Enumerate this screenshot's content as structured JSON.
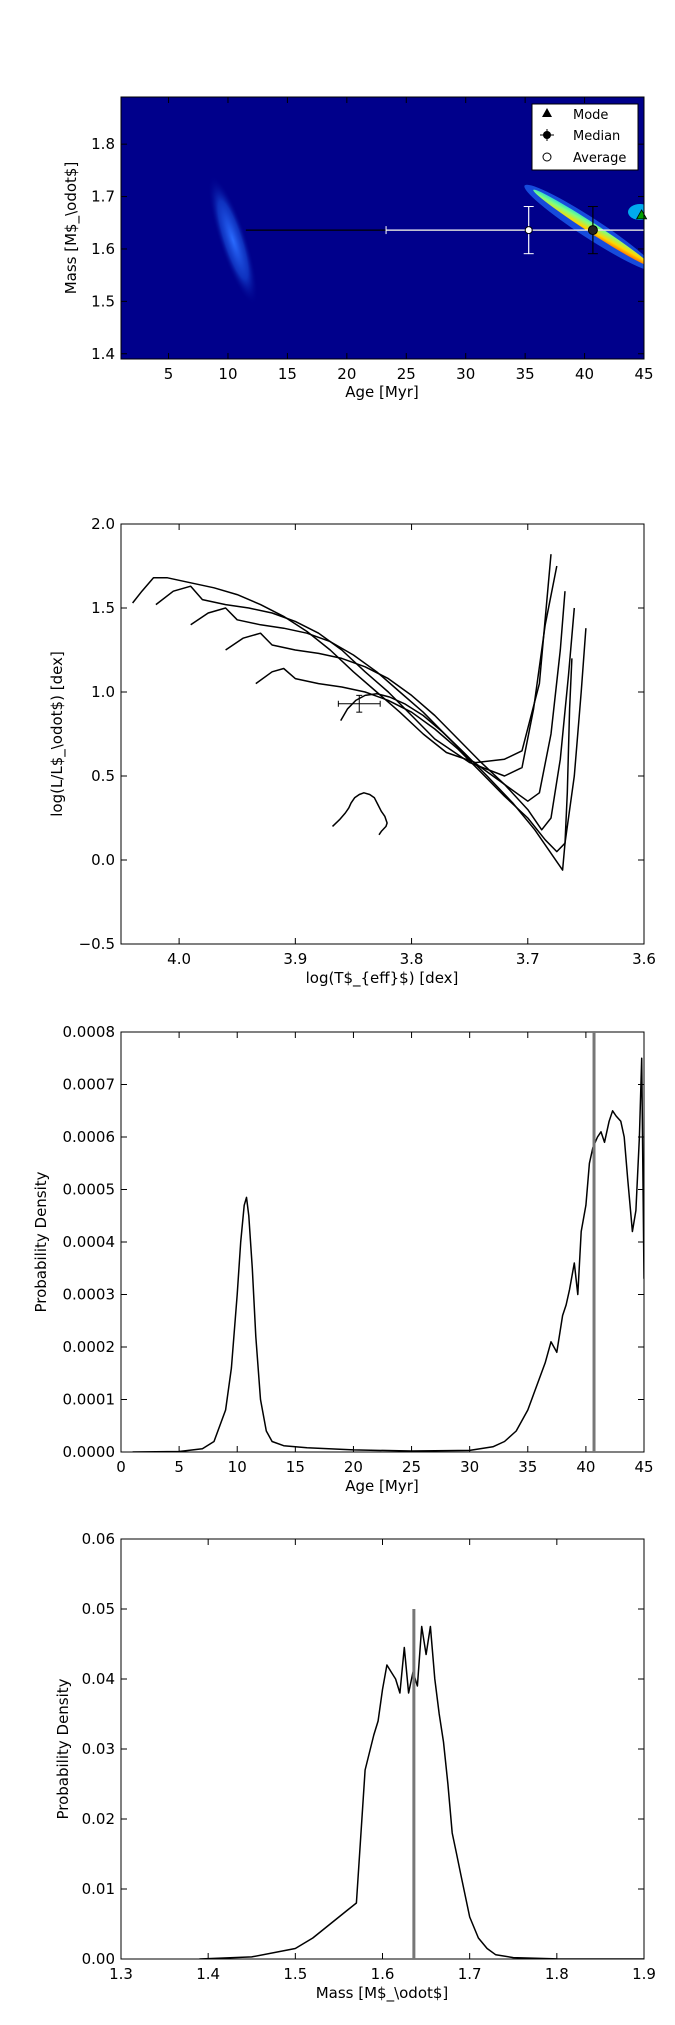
{
  "chart_data": [
    {
      "type": "heatmap",
      "xlabel": "Age [Myr]",
      "ylabel": "Mass [M$_\\odot$]",
      "xlim": [
        1,
        45
      ],
      "ylim": [
        1.39,
        1.89
      ],
      "xticks": [
        5,
        10,
        15,
        20,
        25,
        30,
        35,
        40,
        45
      ],
      "yticks": [
        1.4,
        1.5,
        1.6,
        1.7,
        1.8
      ],
      "xtick_labels": [
        "5",
        "10",
        "15",
        "20",
        "25",
        "30",
        "35",
        "40",
        "45"
      ],
      "ytick_labels": [
        "1.4",
        "1.5",
        "1.6",
        "1.7",
        "1.8"
      ],
      "background_color": "#00008b",
      "legend": {
        "placement": "top-right",
        "entries": [
          {
            "label": "Mode",
            "marker": "triangle"
          },
          {
            "label": "Median",
            "marker": "filled-circle-errorbar"
          },
          {
            "label": "Average",
            "marker": "open-circle"
          }
        ]
      },
      "markers": {
        "mode": {
          "x": 44.8,
          "y": 1.665
        },
        "median": {
          "x": 40.7,
          "y": 1.636,
          "xerr": [
            29.2,
            4.3
          ],
          "yerr": [
            0.045,
            0.045
          ]
        },
        "average": {
          "x": 35.3,
          "y": 1.636,
          "xerr": [
            12.0,
            9.7
          ],
          "yerr": [
            0.045,
            0.045
          ]
        }
      }
    },
    {
      "type": "line",
      "xlabel": "log(T$_{eff}$) [dex]",
      "ylabel": "log(L/L$_\\odot$) [dex]",
      "xlim": [
        4.05,
        3.6
      ],
      "ylim": [
        -0.5,
        2.0
      ],
      "xticks": [
        4.0,
        3.9,
        3.8,
        3.7,
        3.6
      ],
      "yticks": [
        -0.5,
        0.0,
        0.5,
        1.0,
        1.5,
        2.0
      ],
      "xtick_labels": [
        "4.0",
        "3.9",
        "3.8",
        "3.7",
        "3.6"
      ],
      "ytick_labels": [
        "−0.5",
        "0.0",
        "0.5",
        "1.0",
        "1.5",
        "2.0"
      ],
      "star": {
        "x": 3.845,
        "y": 0.93,
        "xerr": 0.018,
        "yerr": 0.05
      },
      "series": [
        {
          "x": [
            3.868,
            3.862,
            3.857,
            3.854,
            3.852,
            3.849,
            3.845,
            3.841,
            3.836,
            3.832,
            3.829,
            3.826,
            3.823,
            3.821,
            3.822,
            3.826,
            3.828
          ],
          "y": [
            0.2,
            0.24,
            0.28,
            0.31,
            0.34,
            0.37,
            0.39,
            0.4,
            0.39,
            0.37,
            0.33,
            0.29,
            0.26,
            0.22,
            0.2,
            0.17,
            0.15
          ]
        },
        {
          "x": [
            3.861,
            3.855,
            3.848,
            3.84,
            3.83,
            3.819,
            3.806,
            3.79,
            3.773,
            3.755,
            3.735,
            3.713,
            3.694,
            3.682,
            3.674,
            3.67,
            3.668,
            3.666,
            3.664,
            3.662
          ],
          "y": [
            0.83,
            0.9,
            0.95,
            0.98,
            0.99,
            0.97,
            0.93,
            0.86,
            0.76,
            0.64,
            0.5,
            0.34,
            0.18,
            0.06,
            -0.02,
            -0.06,
            0.1,
            0.4,
            0.9,
            1.2
          ]
        },
        {
          "x": [
            3.934,
            3.92,
            3.91,
            3.9,
            3.88,
            3.86,
            3.84,
            3.82,
            3.8,
            3.78,
            3.76,
            3.74,
            3.72,
            3.7,
            3.685,
            3.675,
            3.668,
            3.66,
            3.654,
            3.65
          ],
          "y": [
            1.05,
            1.12,
            1.14,
            1.08,
            1.05,
            1.03,
            1.0,
            0.95,
            0.88,
            0.78,
            0.66,
            0.52,
            0.38,
            0.25,
            0.12,
            0.05,
            0.1,
            0.5,
            1.0,
            1.38
          ]
        },
        {
          "x": [
            3.96,
            3.945,
            3.93,
            3.92,
            3.9,
            3.88,
            3.86,
            3.84,
            3.82,
            3.8,
            3.78,
            3.76,
            3.74,
            3.72,
            3.7,
            3.688,
            3.68,
            3.672,
            3.665,
            3.66
          ],
          "y": [
            1.25,
            1.32,
            1.35,
            1.28,
            1.25,
            1.23,
            1.2,
            1.15,
            1.08,
            0.98,
            0.86,
            0.72,
            0.58,
            0.45,
            0.3,
            0.18,
            0.25,
            0.6,
            1.1,
            1.5
          ]
        },
        {
          "x": [
            3.99,
            3.975,
            3.96,
            3.95,
            3.93,
            3.91,
            3.89,
            3.87,
            3.85,
            3.83,
            3.81,
            3.79,
            3.77,
            3.75,
            3.72,
            3.7,
            3.69,
            3.68,
            3.672,
            3.668
          ],
          "y": [
            1.4,
            1.47,
            1.5,
            1.43,
            1.4,
            1.38,
            1.35,
            1.3,
            1.22,
            1.12,
            1.0,
            0.88,
            0.74,
            0.6,
            0.45,
            0.35,
            0.4,
            0.75,
            1.25,
            1.6
          ]
        },
        {
          "x": [
            4.02,
            4.005,
            3.99,
            3.98,
            3.96,
            3.94,
            3.92,
            3.9,
            3.88,
            3.86,
            3.84,
            3.82,
            3.8,
            3.78,
            3.75,
            3.72,
            3.705,
            3.695,
            3.685,
            3.675
          ],
          "y": [
            1.52,
            1.6,
            1.63,
            1.55,
            1.52,
            1.5,
            1.47,
            1.42,
            1.35,
            1.25,
            1.12,
            1.0,
            0.86,
            0.72,
            0.58,
            0.5,
            0.55,
            0.9,
            1.4,
            1.75
          ]
        },
        {
          "x": [
            4.04,
            4.032,
            4.022,
            4.01,
            3.99,
            3.97,
            3.95,
            3.93,
            3.91,
            3.89,
            3.87,
            3.85,
            3.83,
            3.81,
            3.79,
            3.77,
            3.745,
            3.72,
            3.705,
            3.69,
            3.68
          ],
          "y": [
            1.53,
            1.6,
            1.68,
            1.68,
            1.65,
            1.62,
            1.58,
            1.52,
            1.45,
            1.36,
            1.25,
            1.12,
            1.0,
            0.88,
            0.75,
            0.64,
            0.58,
            0.6,
            0.65,
            1.05,
            1.82
          ]
        }
      ]
    },
    {
      "type": "line",
      "xlabel": "Age [Myr]",
      "ylabel": "Probability Density",
      "xlim": [
        0,
        45
      ],
      "ylim": [
        0,
        0.0008
      ],
      "xticks": [
        0,
        5,
        10,
        15,
        20,
        25,
        30,
        35,
        40,
        45
      ],
      "yticks": [
        0,
        0.0001,
        0.0002,
        0.0003,
        0.0004,
        0.0005,
        0.0006,
        0.0007,
        0.0008
      ],
      "xtick_labels": [
        "0",
        "5",
        "10",
        "15",
        "20",
        "25",
        "30",
        "35",
        "40",
        "45"
      ],
      "ytick_labels": [
        "0.0000",
        "0.0001",
        "0.0002",
        "0.0003",
        "0.0004",
        "0.0005",
        "0.0006",
        "0.0007",
        "0.0008"
      ],
      "vline": 40.7,
      "series": [
        {
          "x": [
            1,
            5,
            7,
            8,
            9,
            9.5,
            10,
            10.3,
            10.6,
            10.8,
            11,
            11.3,
            11.6,
            12,
            12.5,
            13,
            14,
            16,
            20,
            25,
            30,
            32,
            33,
            34,
            35,
            35.5,
            36,
            36.5,
            37,
            37.5,
            38,
            38.3,
            38.6,
            39,
            39.3,
            39.6,
            40,
            40.3,
            40.6,
            41,
            41.3,
            41.6,
            42,
            42.3,
            42.6,
            43,
            43.3,
            43.6,
            44,
            44.3,
            44.6,
            44.8,
            45
          ],
          "y": [
            0,
            1e-06,
            6e-06,
            2e-05,
            8e-05,
            0.00016,
            0.0003,
            0.0004,
            0.00047,
            0.000485,
            0.00045,
            0.00035,
            0.00022,
            0.0001,
            4e-05,
            2e-05,
            1.2e-05,
            8e-06,
            4e-06,
            2e-06,
            3e-06,
            1e-05,
            2e-05,
            4e-05,
            8e-05,
            0.00011,
            0.00014,
            0.00017,
            0.00021,
            0.00019,
            0.00026,
            0.00028,
            0.00031,
            0.00036,
            0.0003,
            0.00042,
            0.00047,
            0.00055,
            0.00058,
            0.0006,
            0.00061,
            0.00059,
            0.00063,
            0.00065,
            0.00064,
            0.00063,
            0.0006,
            0.00052,
            0.00042,
            0.00046,
            0.0006,
            0.00075,
            0.00033
          ]
        }
      ]
    },
    {
      "type": "line",
      "xlabel": "Mass [M$_\\odot$]",
      "ylabel": "Probability Density",
      "xlim": [
        1.3,
        1.9
      ],
      "ylim": [
        0,
        0.06
      ],
      "xticks": [
        1.3,
        1.4,
        1.5,
        1.6,
        1.7,
        1.8,
        1.9
      ],
      "yticks": [
        0,
        0.01,
        0.02,
        0.03,
        0.04,
        0.05,
        0.06
      ],
      "xtick_labels": [
        "1.3",
        "1.4",
        "1.5",
        "1.6",
        "1.7",
        "1.8",
        "1.9"
      ],
      "ytick_labels": [
        "0.00",
        "0.01",
        "0.02",
        "0.03",
        "0.04",
        "0.05",
        "0.06"
      ],
      "vline": 1.636,
      "series": [
        {
          "x": [
            1.39,
            1.45,
            1.5,
            1.52,
            1.54,
            1.56,
            1.57,
            1.58,
            1.59,
            1.595,
            1.6,
            1.605,
            1.61,
            1.615,
            1.62,
            1.625,
            1.63,
            1.635,
            1.64,
            1.645,
            1.65,
            1.655,
            1.66,
            1.665,
            1.67,
            1.675,
            1.68,
            1.685,
            1.69,
            1.695,
            1.7,
            1.71,
            1.72,
            1.73,
            1.75,
            1.8,
            1.85,
            1.9
          ],
          "y": [
            0,
            0.0003,
            0.0015,
            0.003,
            0.005,
            0.007,
            0.008,
            0.027,
            0.032,
            0.034,
            0.0385,
            0.042,
            0.041,
            0.04,
            0.038,
            0.0445,
            0.038,
            0.041,
            0.039,
            0.0475,
            0.0435,
            0.0475,
            0.04,
            0.035,
            0.031,
            0.025,
            0.018,
            0.015,
            0.012,
            0.009,
            0.006,
            0.003,
            0.0015,
            0.0006,
            0.0002,
            2e-05,
            0,
            0
          ]
        }
      ]
    }
  ]
}
